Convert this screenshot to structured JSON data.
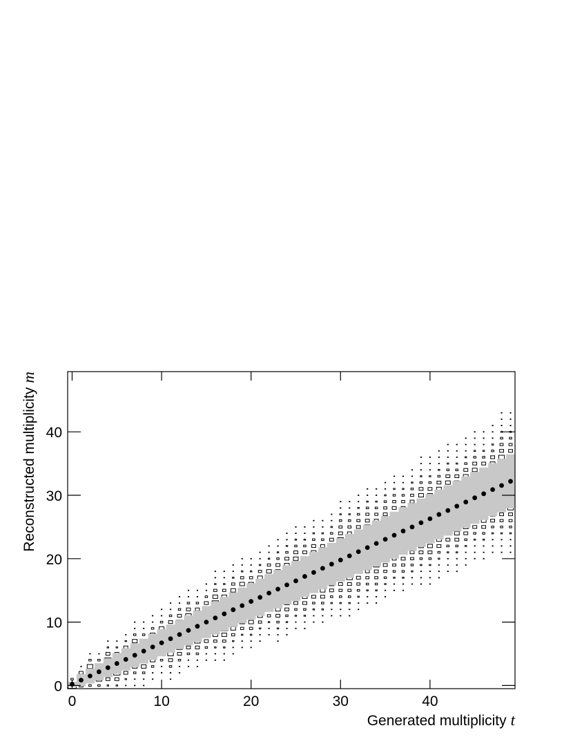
{
  "chart_data": {
    "type": "histogram2d",
    "x_label": "Generated multiplicity",
    "x_label_symbol": "t",
    "y_label": "Reconstructed multiplicity",
    "y_label_symbol": "m",
    "xlim": [
      -0.5,
      49.5
    ],
    "ylim": [
      -0.5,
      49.5
    ],
    "xticks": [
      0,
      10,
      20,
      30,
      40
    ],
    "yticks": [
      0,
      10,
      20,
      30,
      40
    ],
    "box_color": "#000000",
    "band_color": "#c8c8c8",
    "marker_color": "#000000",
    "x": [
      0,
      1,
      2,
      3,
      4,
      5,
      6,
      7,
      8,
      9,
      10,
      11,
      12,
      13,
      14,
      15,
      16,
      17,
      18,
      19,
      20,
      21,
      22,
      23,
      24,
      25,
      26,
      27,
      28,
      29,
      30,
      31,
      32,
      33,
      34,
      35,
      36,
      37,
      38,
      39,
      40,
      41,
      42,
      43,
      44,
      45,
      46,
      47,
      48,
      49
    ],
    "means": [
      0.2,
      0.85,
      1.5,
      2.16,
      2.81,
      3.47,
      4.12,
      4.77,
      5.42,
      6.08,
      6.73,
      7.38,
      8.04,
      8.69,
      9.34,
      10.0,
      10.65,
      11.3,
      11.95,
      12.6,
      13.26,
      13.9,
      14.57,
      15.2,
      15.87,
      16.5,
      17.2,
      17.83,
      18.48,
      19.14,
      19.79,
      20.44,
      21.1,
      21.75,
      22.4,
      23.06,
      23.7,
      24.36,
      25.0,
      25.67,
      26.3,
      26.97,
      27.6,
      28.28,
      28.93,
      29.6,
      30.24,
      30.9,
      31.54,
      32.2
    ],
    "spreads": [
      0.4,
      0.95,
      1.18,
      1.35,
      1.5,
      1.63,
      1.75,
      1.86,
      1.96,
      2.05,
      2.14,
      2.22,
      2.3,
      2.38,
      2.46,
      2.53,
      2.6,
      2.67,
      2.73,
      2.8,
      2.86,
      2.92,
      2.98,
      3.04,
      3.09,
      3.15,
      3.2,
      3.26,
      3.31,
      3.36,
      3.41,
      3.46,
      3.51,
      3.56,
      3.61,
      3.65,
      3.7,
      3.75,
      3.79,
      3.83,
      3.88,
      3.92,
      3.96,
      4.0,
      4.05,
      4.09,
      4.13,
      4.17,
      4.21,
      4.25
    ],
    "columns": [
      {
        "m0": 0,
        "z": [
          10,
          3
        ]
      },
      {
        "m0": 0,
        "z": [
          5,
          10,
          5,
          1
        ]
      },
      {
        "m0": 0,
        "z": [
          3,
          7,
          10,
          7,
          3,
          1
        ]
      },
      {
        "m0": 0,
        "z": [
          3,
          7,
          10,
          7,
          3,
          1
        ]
      },
      {
        "m0": 0,
        "z": [
          2,
          5,
          8,
          10,
          8,
          5,
          2,
          1
        ]
      },
      {
        "m0": 0,
        "z": [
          2,
          5,
          8,
          10,
          8,
          5,
          2,
          1
        ]
      },
      {
        "m0": 0,
        "z": [
          1,
          2,
          5,
          8,
          10,
          8,
          5,
          2,
          1
        ]
      },
      {
        "m0": 0,
        "z": [
          1,
          1,
          3,
          6,
          9,
          10,
          9,
          6,
          3,
          1,
          1
        ]
      },
      {
        "m0": 0,
        "z": [
          1,
          1,
          3,
          6,
          9,
          10,
          9,
          6,
          3,
          1,
          1
        ]
      },
      {
        "m0": 1,
        "z": [
          1,
          1,
          3,
          6,
          9,
          10,
          9,
          6,
          3,
          1,
          1
        ]
      },
      {
        "m0": 2,
        "z": [
          1,
          1,
          3,
          6,
          9,
          10,
          9,
          6,
          3,
          1,
          1
        ]
      },
      {
        "m0": 1,
        "z": [
          1,
          1,
          3,
          5,
          7,
          9,
          10,
          9,
          7,
          5,
          3,
          1,
          1
        ]
      },
      {
        "m0": 2,
        "z": [
          1,
          1,
          3,
          5,
          7,
          9,
          10,
          9,
          7,
          5,
          3,
          1,
          1
        ]
      },
      {
        "m0": 3,
        "z": [
          1,
          1,
          3,
          5,
          7,
          9,
          10,
          9,
          7,
          5,
          3,
          1,
          1
        ]
      },
      {
        "m0": 3,
        "z": [
          1,
          1,
          3,
          5,
          7,
          9,
          10,
          9,
          7,
          5,
          3,
          1,
          1
        ]
      },
      {
        "m0": 4,
        "z": [
          1,
          1,
          3,
          5,
          7,
          9,
          10,
          9,
          7,
          5,
          3,
          1,
          1
        ]
      },
      {
        "m0": 4,
        "z": [
          1,
          1,
          2,
          4,
          6,
          8,
          9,
          10,
          9,
          8,
          6,
          4,
          2,
          1,
          1
        ]
      },
      {
        "m0": 4,
        "z": [
          1,
          1,
          2,
          4,
          6,
          8,
          9,
          10,
          9,
          8,
          6,
          4,
          2,
          1,
          1
        ]
      },
      {
        "m0": 5,
        "z": [
          1,
          1,
          2,
          4,
          6,
          8,
          9,
          10,
          9,
          8,
          6,
          4,
          2,
          1,
          1
        ]
      },
      {
        "m0": 6,
        "z": [
          1,
          1,
          2,
          4,
          6,
          8,
          9,
          10,
          9,
          8,
          6,
          4,
          2,
          1,
          1
        ]
      },
      {
        "m0": 6,
        "z": [
          1,
          1,
          2,
          4,
          6,
          8,
          9,
          10,
          9,
          8,
          6,
          4,
          2,
          1,
          1
        ]
      },
      {
        "m0": 7,
        "z": [
          1,
          1,
          2,
          4,
          6,
          8,
          9,
          10,
          9,
          8,
          6,
          4,
          2,
          1,
          1
        ]
      },
      {
        "m0": 8,
        "z": [
          1,
          1,
          2,
          4,
          6,
          8,
          9,
          10,
          9,
          8,
          6,
          4,
          2,
          1,
          1
        ]
      },
      {
        "m0": 7,
        "z": [
          1,
          1,
          2,
          3,
          5,
          6,
          8,
          9,
          10,
          9,
          8,
          6,
          5,
          3,
          2,
          1,
          1
        ]
      },
      {
        "m0": 8,
        "z": [
          1,
          1,
          2,
          3,
          5,
          6,
          8,
          9,
          10,
          9,
          8,
          6,
          5,
          3,
          2,
          1,
          1
        ]
      },
      {
        "m0": 9,
        "z": [
          1,
          1,
          2,
          3,
          5,
          6,
          8,
          9,
          10,
          9,
          8,
          6,
          5,
          3,
          2,
          1,
          1
        ]
      },
      {
        "m0": 9,
        "z": [
          1,
          1,
          2,
          3,
          5,
          6,
          8,
          9,
          10,
          9,
          8,
          6,
          5,
          3,
          2,
          1,
          1
        ]
      },
      {
        "m0": 10,
        "z": [
          1,
          1,
          2,
          3,
          5,
          6,
          8,
          9,
          10,
          9,
          8,
          6,
          5,
          3,
          2,
          1,
          1
        ]
      },
      {
        "m0": 10,
        "z": [
          1,
          1,
          2,
          3,
          5,
          6,
          8,
          9,
          10,
          9,
          8,
          6,
          5,
          3,
          2,
          1,
          1
        ]
      },
      {
        "m0": 11,
        "z": [
          1,
          1,
          2,
          3,
          5,
          6,
          8,
          9,
          10,
          9,
          8,
          6,
          5,
          3,
          2,
          1,
          1
        ]
      },
      {
        "m0": 11,
        "z": [
          1,
          1,
          2,
          3,
          4,
          5,
          7,
          9,
          10,
          10,
          10,
          9,
          7,
          5,
          4,
          3,
          2,
          1,
          1
        ]
      },
      {
        "m0": 11,
        "z": [
          1,
          1,
          2,
          3,
          4,
          5,
          7,
          9,
          10,
          10,
          10,
          9,
          7,
          5,
          4,
          3,
          2,
          1,
          1
        ]
      },
      {
        "m0": 12,
        "z": [
          1,
          1,
          2,
          3,
          4,
          5,
          7,
          9,
          10,
          10,
          10,
          9,
          7,
          5,
          4,
          3,
          2,
          1,
          1
        ]
      },
      {
        "m0": 13,
        "z": [
          1,
          1,
          2,
          3,
          4,
          5,
          7,
          9,
          10,
          10,
          10,
          9,
          7,
          5,
          4,
          3,
          2,
          1,
          1
        ]
      },
      {
        "m0": 13,
        "z": [
          1,
          1,
          2,
          3,
          4,
          5,
          7,
          9,
          10,
          10,
          10,
          9,
          7,
          5,
          4,
          3,
          2,
          1,
          1
        ]
      },
      {
        "m0": 14,
        "z": [
          1,
          1,
          2,
          3,
          4,
          5,
          7,
          9,
          10,
          10,
          10,
          9,
          7,
          5,
          4,
          3,
          2,
          1,
          1
        ]
      },
      {
        "m0": 15,
        "z": [
          1,
          1,
          2,
          3,
          4,
          5,
          7,
          9,
          10,
          10,
          10,
          9,
          7,
          5,
          4,
          3,
          2,
          1,
          1
        ]
      },
      {
        "m0": 15,
        "z": [
          1,
          1,
          2,
          3,
          4,
          5,
          7,
          9,
          10,
          10,
          10,
          9,
          7,
          5,
          4,
          3,
          2,
          1,
          1
        ]
      },
      {
        "m0": 16,
        "z": [
          1,
          1,
          2,
          3,
          4,
          5,
          7,
          9,
          10,
          10,
          10,
          9,
          7,
          5,
          4,
          3,
          2,
          1,
          1
        ]
      },
      {
        "m0": 16,
        "z": [
          1,
          1,
          1,
          2,
          3,
          5,
          6,
          8,
          9,
          10,
          10,
          10,
          9,
          8,
          6,
          5,
          3,
          2,
          1,
          1,
          1
        ]
      },
      {
        "m0": 16,
        "z": [
          1,
          1,
          1,
          2,
          3,
          5,
          6,
          8,
          9,
          10,
          10,
          10,
          9,
          8,
          6,
          5,
          3,
          2,
          1,
          1,
          1
        ]
      },
      {
        "m0": 17,
        "z": [
          1,
          1,
          1,
          2,
          3,
          5,
          6,
          8,
          9,
          10,
          10,
          10,
          9,
          8,
          6,
          5,
          3,
          2,
          1,
          1,
          1
        ]
      },
      {
        "m0": 18,
        "z": [
          1,
          1,
          1,
          2,
          3,
          5,
          6,
          8,
          9,
          10,
          10,
          10,
          9,
          8,
          6,
          5,
          3,
          2,
          1,
          1,
          1
        ]
      },
      {
        "m0": 18,
        "z": [
          1,
          1,
          1,
          2,
          3,
          5,
          6,
          8,
          9,
          10,
          10,
          10,
          9,
          8,
          6,
          5,
          3,
          2,
          1,
          1,
          1
        ]
      },
      {
        "m0": 19,
        "z": [
          1,
          1,
          1,
          2,
          3,
          5,
          6,
          8,
          9,
          10,
          10,
          10,
          9,
          8,
          6,
          5,
          3,
          2,
          1,
          1,
          1
        ]
      },
      {
        "m0": 20,
        "z": [
          1,
          1,
          1,
          2,
          3,
          5,
          6,
          8,
          9,
          10,
          10,
          10,
          9,
          8,
          6,
          5,
          3,
          2,
          1,
          1,
          1
        ]
      },
      {
        "m0": 20,
        "z": [
          1,
          1,
          1,
          2,
          3,
          5,
          6,
          8,
          9,
          10,
          10,
          10,
          9,
          8,
          6,
          5,
          3,
          2,
          1,
          1,
          1
        ]
      },
      {
        "m0": 21,
        "z": [
          1,
          1,
          1,
          2,
          3,
          5,
          6,
          8,
          9,
          10,
          10,
          10,
          9,
          8,
          6,
          5,
          3,
          2,
          1,
          1,
          1
        ]
      },
      {
        "m0": 21,
        "z": [
          1,
          1,
          1,
          2,
          3,
          4,
          5,
          7,
          8,
          9,
          10,
          10,
          10,
          9,
          8,
          7,
          5,
          4,
          3,
          2,
          1,
          1,
          1
        ]
      },
      {
        "m0": 21,
        "z": [
          1,
          1,
          1,
          2,
          3,
          4,
          5,
          7,
          8,
          9,
          10,
          10,
          10,
          9,
          8,
          7,
          5,
          4,
          3,
          2,
          1,
          1,
          1
        ]
      }
    ]
  }
}
